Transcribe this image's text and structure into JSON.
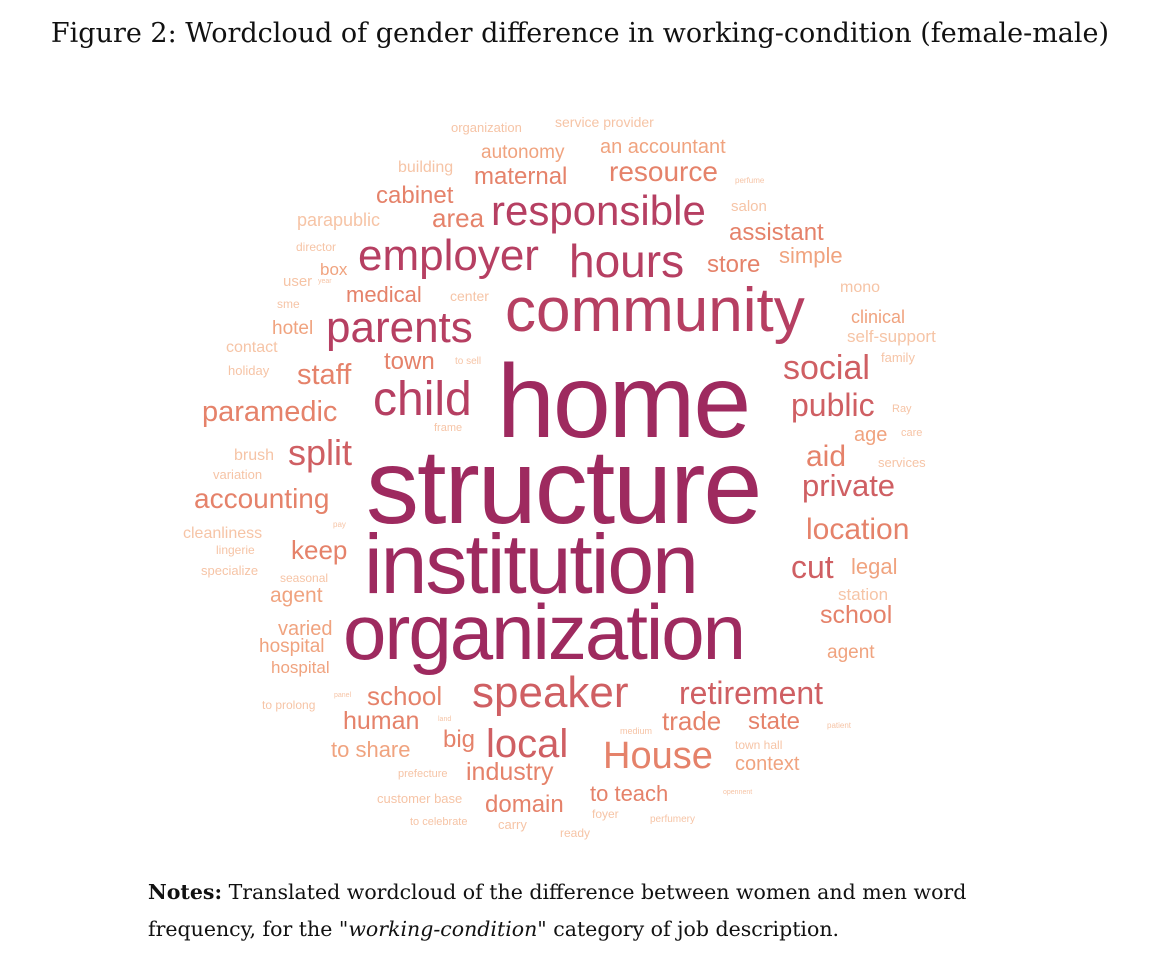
{
  "figure": {
    "caption": "Figure 2: Wordcloud of gender difference in working-condition (female-male)"
  },
  "notes": {
    "label": "Notes:",
    "text_before": " Translated wordcloud of the difference between women and men word frequency, for the \"",
    "italic": "working-condition",
    "text_after": "\" category of job description."
  },
  "wordcloud": {
    "palette": [
      "#9e2a5f",
      "#b63f62",
      "#cf5f63",
      "#e5826a",
      "#f0a37f",
      "#f6c4a6"
    ],
    "words": [
      {
        "text": "home",
        "rank": 0
      },
      {
        "text": "structure",
        "rank": 0
      },
      {
        "text": "institution",
        "rank": 0
      },
      {
        "text": "organization",
        "rank": 0
      },
      {
        "text": "community",
        "rank": 1
      },
      {
        "text": "child",
        "rank": 1
      },
      {
        "text": "parents",
        "rank": 1
      },
      {
        "text": "hours",
        "rank": 1
      },
      {
        "text": "employer",
        "rank": 1
      },
      {
        "text": "responsible",
        "rank": 1
      },
      {
        "text": "speaker",
        "rank": 2
      },
      {
        "text": "local",
        "rank": 2
      },
      {
        "text": "House",
        "rank": 3
      },
      {
        "text": "retirement",
        "rank": 2
      },
      {
        "text": "social",
        "rank": 2
      },
      {
        "text": "public",
        "rank": 2
      },
      {
        "text": "private",
        "rank": 2
      },
      {
        "text": "split",
        "rank": 2
      },
      {
        "text": "location",
        "rank": 3
      },
      {
        "text": "cut",
        "rank": 2
      },
      {
        "text": "accounting",
        "rank": 3
      },
      {
        "text": "paramedic",
        "rank": 3
      },
      {
        "text": "staff",
        "rank": 3
      },
      {
        "text": "aid",
        "rank": 3
      },
      {
        "text": "resource",
        "rank": 3
      },
      {
        "text": "maternal",
        "rank": 3
      },
      {
        "text": "area",
        "rank": 3
      },
      {
        "text": "cabinet",
        "rank": 3
      },
      {
        "text": "assistant",
        "rank": 3
      },
      {
        "text": "store",
        "rank": 3
      },
      {
        "text": "medical",
        "rank": 3
      },
      {
        "text": "town",
        "rank": 3
      },
      {
        "text": "keep",
        "rank": 3
      },
      {
        "text": "school",
        "rank": 3
      },
      {
        "text": "school",
        "rank": 3
      },
      {
        "text": "human",
        "rank": 3
      },
      {
        "text": "big",
        "rank": 3
      },
      {
        "text": "trade",
        "rank": 3
      },
      {
        "text": "state",
        "rank": 3
      },
      {
        "text": "industry",
        "rank": 3
      },
      {
        "text": "domain",
        "rank": 3
      },
      {
        "text": "to teach",
        "rank": 3
      },
      {
        "text": "to share",
        "rank": 4
      },
      {
        "text": "age",
        "rank": 4
      },
      {
        "text": "legal",
        "rank": 4
      },
      {
        "text": "agent",
        "rank": 4
      },
      {
        "text": "agent",
        "rank": 4
      },
      {
        "text": "varied",
        "rank": 4
      },
      {
        "text": "hospital",
        "rank": 4
      },
      {
        "text": "hospital",
        "rank": 4
      },
      {
        "text": "hotel",
        "rank": 4
      },
      {
        "text": "simple",
        "rank": 4
      },
      {
        "text": "clinical",
        "rank": 4
      },
      {
        "text": "context",
        "rank": 4
      },
      {
        "text": "autonomy",
        "rank": 4
      },
      {
        "text": "an accountant",
        "rank": 4
      },
      {
        "text": "box",
        "rank": 4
      },
      {
        "text": "station",
        "rank": 5
      },
      {
        "text": "parapublic",
        "rank": 5
      },
      {
        "text": "self-support",
        "rank": 5
      },
      {
        "text": "mono",
        "rank": 5
      },
      {
        "text": "contact",
        "rank": 5
      },
      {
        "text": "cleanliness",
        "rank": 5
      },
      {
        "text": "brush",
        "rank": 5
      },
      {
        "text": "building",
        "rank": 5
      },
      {
        "text": "user",
        "rank": 5
      },
      {
        "text": "center",
        "rank": 5
      },
      {
        "text": "service provider",
        "rank": 5
      },
      {
        "text": "organization",
        "rank": 5
      },
      {
        "text": "salon",
        "rank": 5
      },
      {
        "text": "director",
        "rank": 5
      },
      {
        "text": "sme",
        "rank": 5
      },
      {
        "text": "holiday",
        "rank": 5
      },
      {
        "text": "family",
        "rank": 5
      },
      {
        "text": "Ray",
        "rank": 5
      },
      {
        "text": "frame",
        "rank": 5
      },
      {
        "text": "care",
        "rank": 5
      },
      {
        "text": "services",
        "rank": 5
      },
      {
        "text": "variation",
        "rank": 5
      },
      {
        "text": "lingerie",
        "rank": 5
      },
      {
        "text": "specialize",
        "rank": 5
      },
      {
        "text": "seasonal",
        "rank": 5
      },
      {
        "text": "pay",
        "rank": 5
      },
      {
        "text": "to sell",
        "rank": 5
      },
      {
        "text": "to prolong",
        "rank": 5
      },
      {
        "text": "town hall",
        "rank": 5
      },
      {
        "text": "prefecture",
        "rank": 5
      },
      {
        "text": "customer base",
        "rank": 5
      },
      {
        "text": "to celebrate",
        "rank": 5
      },
      {
        "text": "carry",
        "rank": 5
      },
      {
        "text": "ready",
        "rank": 5
      },
      {
        "text": "foyer",
        "rank": 5
      },
      {
        "text": "perfumery",
        "rank": 5
      },
      {
        "text": "perfume",
        "rank": 5
      },
      {
        "text": "medium",
        "rank": 5
      },
      {
        "text": "patient",
        "rank": 5
      },
      {
        "text": "opennent",
        "rank": 5
      },
      {
        "text": "panel",
        "rank": 5
      },
      {
        "text": "land",
        "rank": 5
      },
      {
        "text": "year",
        "rank": 5
      }
    ]
  }
}
